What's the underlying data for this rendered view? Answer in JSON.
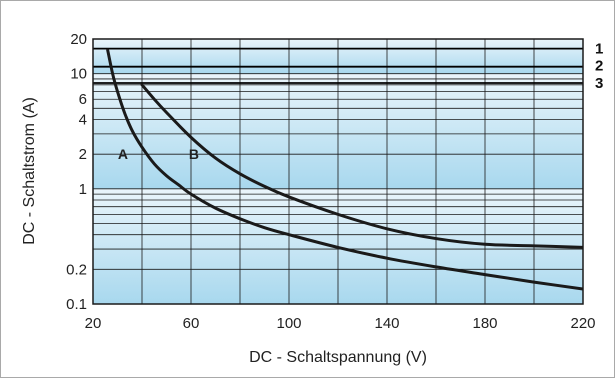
{
  "chart_data": {
    "type": "line",
    "xlabel": "DC - Schaltspannung (V)",
    "ylabel": "DC - Schaltstrom (A)",
    "xlim": [
      20,
      220
    ],
    "ylim": [
      0.1,
      20
    ],
    "y_scale": "log",
    "x_ticks": [
      20,
      60,
      100,
      140,
      180,
      220
    ],
    "x_tick_labels": [
      "20",
      "60",
      "100",
      "140",
      "180",
      "220"
    ],
    "y_ticks": [
      0.1,
      0.2,
      1,
      2,
      4,
      6,
      10,
      20
    ],
    "y_tick_labels": [
      "0.1",
      "0.2",
      "1",
      "2",
      "4",
      "6",
      "10",
      "20"
    ],
    "grid": true,
    "series": [
      {
        "name": "A",
        "x": [
          26,
          28,
          30,
          33,
          36,
          40,
          45,
          50,
          55,
          60,
          70,
          80,
          90,
          100,
          120,
          140,
          160,
          180,
          200,
          220
        ],
        "y": [
          16,
          10,
          7,
          4.5,
          3.2,
          2.3,
          1.65,
          1.3,
          1.08,
          0.9,
          0.68,
          0.55,
          0.46,
          0.4,
          0.31,
          0.25,
          0.21,
          0.18,
          0.155,
          0.135
        ]
      },
      {
        "name": "B",
        "x": [
          40,
          45,
          50,
          60,
          70,
          80,
          90,
          100,
          120,
          140,
          160,
          180,
          200,
          220
        ],
        "y": [
          8,
          6,
          4.6,
          2.8,
          1.85,
          1.35,
          1.05,
          0.85,
          0.6,
          0.45,
          0.37,
          0.33,
          0.32,
          0.31
        ]
      }
    ],
    "horizontal_lines": [
      {
        "name": "1",
        "y": 16.5
      },
      {
        "name": "2",
        "y": 11.5
      },
      {
        "name": "3",
        "y": 8.3
      }
    ],
    "colors": {
      "band_light": "#eaf5fb",
      "band_dark": "#a8d8ee",
      "grid": "#1a1a1a",
      "curve": "#1a1a1a"
    }
  }
}
